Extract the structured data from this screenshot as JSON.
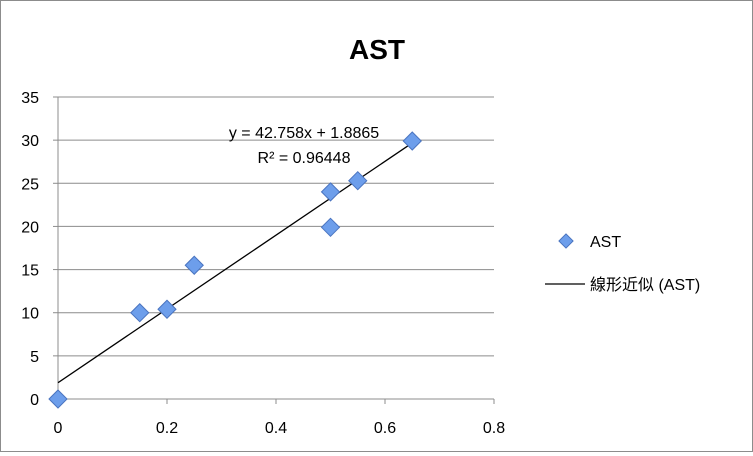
{
  "chart_data": {
    "type": "scatter",
    "title": "AST",
    "xlabel": "",
    "ylabel": "",
    "xlim": [
      0,
      0.8
    ],
    "ylim": [
      0,
      35
    ],
    "xticks": [
      "0",
      "0.2",
      "0.4",
      "0.6",
      "0.8"
    ],
    "yticks": [
      "0",
      "5",
      "10",
      "15",
      "20",
      "25",
      "30",
      "35"
    ],
    "grid": "horizontal",
    "legend_position": "right",
    "marker_color": "#6d9eeb",
    "series": [
      {
        "name": "AST",
        "points": [
          {
            "x": 0,
            "y": 0
          },
          {
            "x": 0.15,
            "y": 10
          },
          {
            "x": 0.2,
            "y": 10.4
          },
          {
            "x": 0.25,
            "y": 15.5
          },
          {
            "x": 0.5,
            "y": 24
          },
          {
            "x": 0.5,
            "y": 19.9
          },
          {
            "x": 0.55,
            "y": 25.3
          },
          {
            "x": 0.65,
            "y": 29.9
          }
        ]
      }
    ],
    "trendline": {
      "name": "線形近似 (AST)",
      "slope": 42.758,
      "intercept": 1.8865,
      "x_range": [
        0,
        0.65
      ],
      "equation_text": "y = 42.758x + 1.8865",
      "r2_text": "R² = 0.96448"
    }
  }
}
